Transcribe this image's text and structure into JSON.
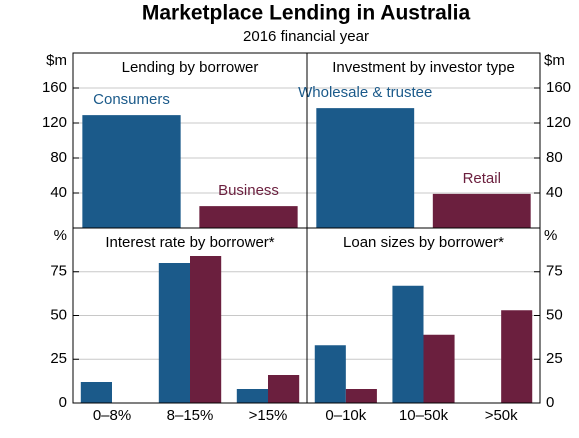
{
  "title": "Marketplace Lending in Australia",
  "subtitle": "2016 financial year",
  "chart_data": [
    {
      "type": "bar",
      "title": "Lending by borrower",
      "ylabel": "$m",
      "categories": [
        "Consumers",
        "Business"
      ],
      "values": [
        129,
        25
      ],
      "colors": [
        "#1b5a8a",
        "#6b1f3e"
      ],
      "ylim": [
        0,
        200
      ],
      "yticks": [
        40,
        80,
        120,
        160
      ],
      "grid": true
    },
    {
      "type": "bar",
      "title": "Investment by investor type",
      "ylabel": "$m",
      "categories": [
        "Wholesale & trustee",
        "Retail"
      ],
      "values": [
        137,
        39
      ],
      "colors": [
        "#1b5a8a",
        "#6b1f3e"
      ],
      "ylim": [
        0,
        200
      ],
      "yticks": [
        40,
        80,
        120,
        160
      ],
      "grid": true
    },
    {
      "type": "grouped-bar",
      "title": "Interest rate by borrower*",
      "ylabel": "%",
      "categories": [
        "0–8%",
        "8–15%",
        ">15%"
      ],
      "series": [
        {
          "color": "#1b5a8a",
          "values": [
            12,
            80,
            8
          ]
        },
        {
          "color": "#6b1f3e",
          "values": [
            null,
            84,
            16
          ]
        }
      ],
      "ylim": [
        0,
        100
      ],
      "yticks": [
        0,
        25,
        50,
        75
      ],
      "grid": true
    },
    {
      "type": "grouped-bar",
      "title": "Loan sizes by borrower*",
      "ylabel": "%",
      "categories": [
        "0–10k",
        "10–50k",
        ">50k"
      ],
      "series": [
        {
          "color": "#1b5a8a",
          "values": [
            33,
            67,
            null
          ]
        },
        {
          "color": "#6b1f3e",
          "values": [
            8,
            39,
            53
          ]
        }
      ],
      "ylim": [
        0,
        100
      ],
      "yticks": [
        0,
        25,
        50,
        75
      ],
      "grid": true
    }
  ]
}
